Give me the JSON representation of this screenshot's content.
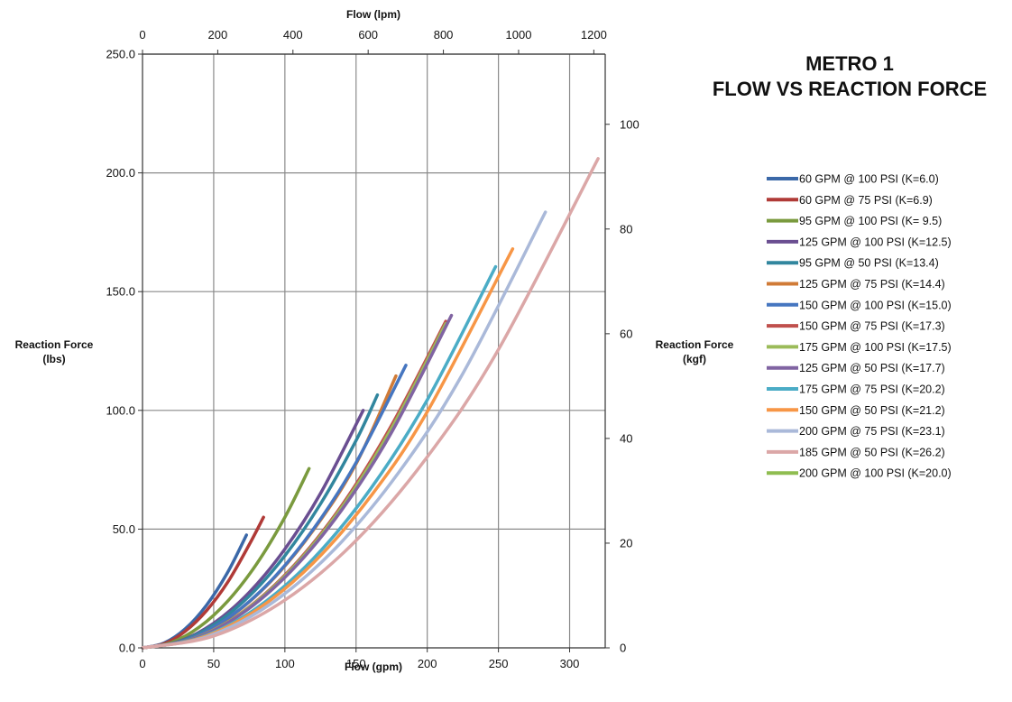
{
  "chart_data": {
    "type": "line",
    "title_lines": [
      "METRO 1",
      "FLOW VS REACTION FORCE"
    ],
    "x_bottom": {
      "label": "Flow (gpm)",
      "range": [
        0,
        325
      ],
      "ticks": [
        0,
        50,
        100,
        150,
        200,
        250,
        300
      ]
    },
    "x_top": {
      "label": "Flow (lpm)",
      "range": [
        0,
        1230.3
      ],
      "ticks": [
        0,
        200,
        400,
        600,
        800,
        1000,
        1200
      ]
    },
    "y_left": {
      "label_lines": [
        "Reaction Force",
        "(lbs)"
      ],
      "range": [
        0,
        250
      ],
      "ticks": [
        0,
        50,
        100,
        150,
        200,
        250
      ],
      "tick_labels": [
        "0.0",
        "50.0",
        "100.0",
        "150.0",
        "200.0",
        "250.0"
      ]
    },
    "y_right": {
      "label_lines": [
        "Reaction Force",
        "(kgf)"
      ],
      "range": [
        0,
        113.4
      ],
      "ticks": [
        0,
        20,
        40,
        60,
        80,
        100
      ]
    },
    "grid": true,
    "legend_position": "right",
    "series": [
      {
        "name": "60 GPM @ 100 PSI (K=6.0)",
        "color": "#3b68a8",
        "x": [
          0,
          15,
          30,
          45,
          60,
          73
        ],
        "y": [
          0,
          2.0,
          8.0,
          18.0,
          32.0,
          47.5
        ]
      },
      {
        "name": "60 GPM @ 75 PSI (K=6.9)",
        "color": "#b03a37",
        "x": [
          0,
          15,
          30,
          45,
          60,
          75,
          85
        ],
        "y": [
          0,
          1.7,
          7.0,
          15.7,
          27.8,
          43.5,
          55.0
        ]
      },
      {
        "name": "95 GPM @ 100 PSI (K= 9.5)",
        "color": "#7a9a3e",
        "x": [
          0,
          20,
          40,
          60,
          80,
          100,
          117
        ],
        "y": [
          0,
          2.2,
          8.8,
          19.8,
          35.2,
          55.0,
          75.5
        ]
      },
      {
        "name": "125 GPM @ 100 PSI (K=12.5)",
        "color": "#6a4e91",
        "x": [
          0,
          25,
          50,
          75,
          100,
          125,
          155
        ],
        "y": [
          0,
          2.6,
          10.4,
          23.4,
          41.6,
          65.0,
          100.0
        ]
      },
      {
        "name": "95 GPM @ 50 PSI (K=13.4)",
        "color": "#31869e",
        "x": [
          0,
          25,
          50,
          75,
          100,
          125,
          150,
          165
        ],
        "y": [
          0,
          2.4,
          9.7,
          21.8,
          38.8,
          60.6,
          87.3,
          106.5
        ]
      },
      {
        "name": "125 GPM @ 75 PSI (K=14.4)",
        "color": "#d07b37",
        "x": [
          0,
          30,
          60,
          90,
          120,
          150,
          178
        ],
        "y": [
          0,
          3.1,
          12.4,
          27.9,
          49.6,
          77.5,
          114.5
        ]
      },
      {
        "name": "150 GPM @ 100 PSI (K=15.0)",
        "color": "#4676c0",
        "x": [
          0,
          30,
          60,
          90,
          120,
          150,
          185
        ],
        "y": [
          0,
          3.1,
          12.5,
          28.1,
          50.0,
          78.0,
          119.0
        ]
      },
      {
        "name": "150 GPM @ 75 PSI (K=17.3)",
        "color": "#c0504d",
        "x": [
          0,
          35,
          70,
          105,
          140,
          175,
          213
        ],
        "y": [
          0,
          3.7,
          15.0,
          33.8,
          60.0,
          93.8,
          137.5
        ]
      },
      {
        "name": "175 GPM @ 100 PSI (K=17.5)",
        "color": "#9bbb59",
        "x": [
          0,
          35,
          70,
          105,
          140,
          175,
          213
        ],
        "y": [
          0,
          3.7,
          14.8,
          33.3,
          59.2,
          92.5,
          136.5
        ]
      },
      {
        "name": "125 GPM @ 50 PSI (K=17.7)",
        "color": "#8064a2",
        "x": [
          0,
          35,
          70,
          105,
          140,
          175,
          217
        ],
        "y": [
          0,
          3.6,
          14.5,
          32.7,
          58.1,
          90.8,
          140.0
        ]
      },
      {
        "name": "175 GPM @ 75 PSI (K=20.2)",
        "color": "#4bacc6",
        "x": [
          0,
          40,
          80,
          120,
          160,
          200,
          248
        ],
        "y": [
          0,
          4.2,
          16.7,
          37.6,
          66.8,
          104.4,
          160.5
        ]
      },
      {
        "name": "150 GPM @ 50 PSI (K=21.2)",
        "color": "#f79646",
        "x": [
          0,
          40,
          80,
          120,
          160,
          200,
          260
        ],
        "y": [
          0,
          4.0,
          15.9,
          35.8,
          63.6,
          99.4,
          168.0
        ]
      },
      {
        "name": "200 GPM @ 75 PSI (K=23.1)",
        "color": "#aab9d9",
        "x": [
          0,
          45,
          90,
          135,
          180,
          225,
          283
        ],
        "y": [
          0,
          4.6,
          18.5,
          41.6,
          73.9,
          115.5,
          183.5
        ]
      },
      {
        "name": "185 GPM @ 50 PSI (K=26.2)",
        "color": "#dba7a7",
        "x": [
          0,
          50,
          100,
          150,
          200,
          250,
          320
        ],
        "y": [
          0,
          5.0,
          20.1,
          45.2,
          80.4,
          125.6,
          206.0
        ]
      },
      {
        "name": "200 GPM @ 100 PSI (K=20.0)",
        "color": "#8fbd50",
        "x": [],
        "y": []
      }
    ]
  }
}
